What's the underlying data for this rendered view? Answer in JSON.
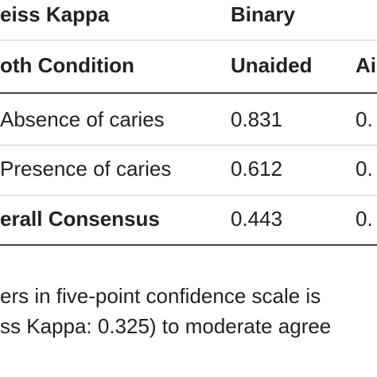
{
  "table": {
    "header": [
      [
        "eiss Kappa",
        "Binary",
        ""
      ],
      [
        "oth Condition",
        "Unaided",
        "Ai"
      ]
    ],
    "rows": [
      [
        "Absence of caries",
        "0.831",
        "0."
      ],
      [
        "Presence of caries",
        "0.612",
        "0."
      ],
      [
        "erall Consensus",
        "0.443",
        "0."
      ]
    ]
  },
  "caption": [
    "ers in five-point confidence scale is",
    "ss Kappa: 0.325) to moderate agree"
  ]
}
